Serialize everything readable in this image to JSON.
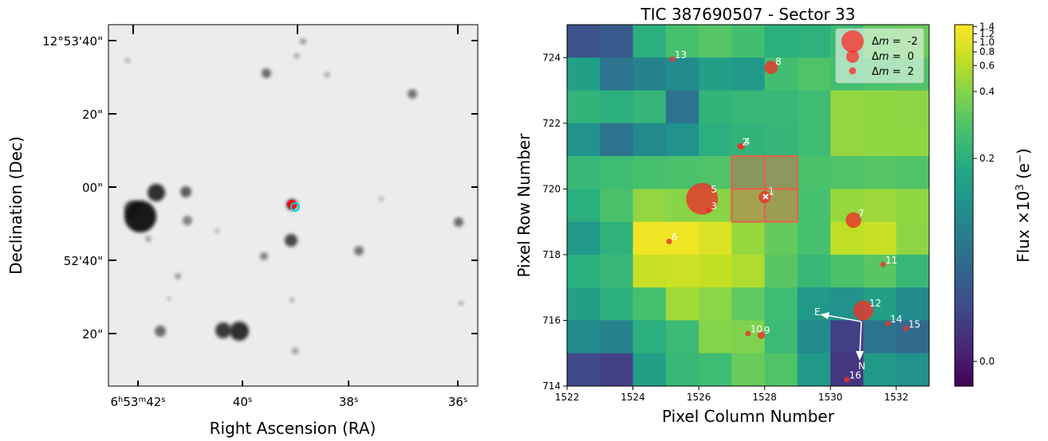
{
  "chart_data": [
    {
      "type": "scatter",
      "panel": "sky-image",
      "xlabel": "Right Ascension (RA)",
      "ylabel": "Declination (Dec)",
      "x_ticks": [
        {
          "label": "6h53m42s",
          "parts": [
            "6",
            "h",
            "53",
            "m",
            "42",
            "s"
          ]
        },
        {
          "label": "40s",
          "parts": [
            "40",
            "s"
          ]
        },
        {
          "label": "38s",
          "parts": [
            "38",
            "s"
          ]
        },
        {
          "label": "36s",
          "parts": [
            "36",
            "s"
          ]
        }
      ],
      "y_ticks": [
        "12°53'40\"",
        "20\"",
        "00\"",
        "52'40\"",
        "20\""
      ],
      "markers": [
        {
          "name": "target-red",
          "color": "#ff0000"
        },
        {
          "name": "target-cyan",
          "color": "#00d4e0"
        }
      ]
    },
    {
      "type": "heatmap",
      "panel": "tpf",
      "title": "TIC 387690507 - Sector 33",
      "xlabel": "Pixel Column Number",
      "ylabel": "Pixel Row Number",
      "x_ticks": [
        "1522",
        "1524",
        "1526",
        "1528",
        "1530",
        "1532"
      ],
      "y_ticks": [
        "714",
        "716",
        "718",
        "720",
        "722",
        "724"
      ],
      "xlim": [
        1522,
        1533
      ],
      "ylim": [
        714,
        725
      ],
      "colorbar": {
        "label_main": "Flux ×10",
        "label_sup": "3",
        "label_unit": " (e",
        "label_unit_sup": "−",
        "label_end": ")",
        "ticks": [
          "0.0",
          "0.2",
          "0.4",
          "0.6",
          "0.8",
          "1.0",
          "1.2",
          "1.4"
        ],
        "colormap": "viridis"
      },
      "grid_flux": [
        [
          0.08,
          0.09,
          0.2,
          0.28,
          0.31,
          0.27,
          0.2,
          0.21,
          0.26,
          0.33,
          0.35
        ],
        [
          0.18,
          0.12,
          0.14,
          0.15,
          0.18,
          0.17,
          0.27,
          0.3,
          0.27,
          0.29,
          0.3
        ],
        [
          0.22,
          0.2,
          0.23,
          0.12,
          0.22,
          0.24,
          0.24,
          0.26,
          0.46,
          0.45,
          0.44
        ],
        [
          0.16,
          0.12,
          0.15,
          0.16,
          0.2,
          0.22,
          0.23,
          0.26,
          0.46,
          0.45,
          0.45
        ],
        [
          0.24,
          0.26,
          0.28,
          0.29,
          0.3,
          0.28,
          0.29,
          0.29,
          0.3,
          0.31,
          0.3
        ],
        [
          0.2,
          0.29,
          0.46,
          0.42,
          0.42,
          0.38,
          0.34,
          0.28,
          0.48,
          0.5,
          0.45
        ],
        [
          0.17,
          0.21,
          1.25,
          1.24,
          0.95,
          0.48,
          0.34,
          0.28,
          0.68,
          0.75,
          0.44
        ],
        [
          0.2,
          0.24,
          0.75,
          0.78,
          0.72,
          0.58,
          0.32,
          0.24,
          0.29,
          0.32,
          0.24
        ],
        [
          0.18,
          0.2,
          0.28,
          0.52,
          0.43,
          0.33,
          0.26,
          0.17,
          0.16,
          0.18,
          0.15
        ],
        [
          0.15,
          0.14,
          0.2,
          0.25,
          0.4,
          0.39,
          0.25,
          0.15,
          0.06,
          0.12,
          0.11
        ],
        [
          0.07,
          0.06,
          0.18,
          0.24,
          0.26,
          0.35,
          0.3,
          0.17,
          0.05,
          0.17,
          0.16
        ]
      ],
      "aperture_pixels": [
        [
          1527,
          720
        ],
        [
          1528,
          720
        ],
        [
          1527,
          719
        ],
        [
          1528,
          719
        ]
      ],
      "stars": [
        {
          "id": "1",
          "x": 1528.0,
          "y": 719.75,
          "dm": 0.5
        },
        {
          "id": "2",
          "x": 1527.25,
          "y": 721.3,
          "dm": 1.4
        },
        {
          "id": "3",
          "x": 1526.3,
          "y": 719.35,
          "dm": 2.0
        },
        {
          "id": "4",
          "x": 1527.3,
          "y": 721.3,
          "dm": 1.2
        },
        {
          "id": "5",
          "x": 1526.1,
          "y": 719.7,
          "dm": -2.2
        },
        {
          "id": "6",
          "x": 1525.1,
          "y": 718.4,
          "dm": 1.5
        },
        {
          "id": "7",
          "x": 1530.7,
          "y": 719.05,
          "dm": 0.0
        },
        {
          "id": "8",
          "x": 1528.2,
          "y": 723.7,
          "dm": 0.3
        },
        {
          "id": "9",
          "x": 1527.9,
          "y": 715.55,
          "dm": 1.1
        },
        {
          "id": "10",
          "x": 1527.5,
          "y": 715.6,
          "dm": 2.0
        },
        {
          "id": "11",
          "x": 1531.6,
          "y": 717.7,
          "dm": 1.6
        },
        {
          "id": "12",
          "x": 1531.0,
          "y": 716.3,
          "dm": -0.6
        },
        {
          "id": "13",
          "x": 1525.2,
          "y": 723.95,
          "dm": 2.5
        },
        {
          "id": "14",
          "x": 1531.75,
          "y": 715.9,
          "dm": 2.3
        },
        {
          "id": "15",
          "x": 1532.3,
          "y": 715.75,
          "dm": 2.2
        },
        {
          "id": "16",
          "x": 1530.5,
          "y": 714.2,
          "dm": 2.0
        }
      ],
      "legend": {
        "placement": "top-right",
        "entries": [
          {
            "prefix": "Δ",
            "var": "m",
            "text": " = ",
            "value": "-2",
            "dm": -2
          },
          {
            "prefix": "Δ",
            "var": "m",
            "text": " = ",
            "value": "0",
            "dm": 0
          },
          {
            "prefix": "Δ",
            "var": "m",
            "text": " = ",
            "value": "2",
            "dm": 2
          }
        ]
      },
      "compass": {
        "east_label": "E",
        "north_label": "N"
      }
    }
  ]
}
